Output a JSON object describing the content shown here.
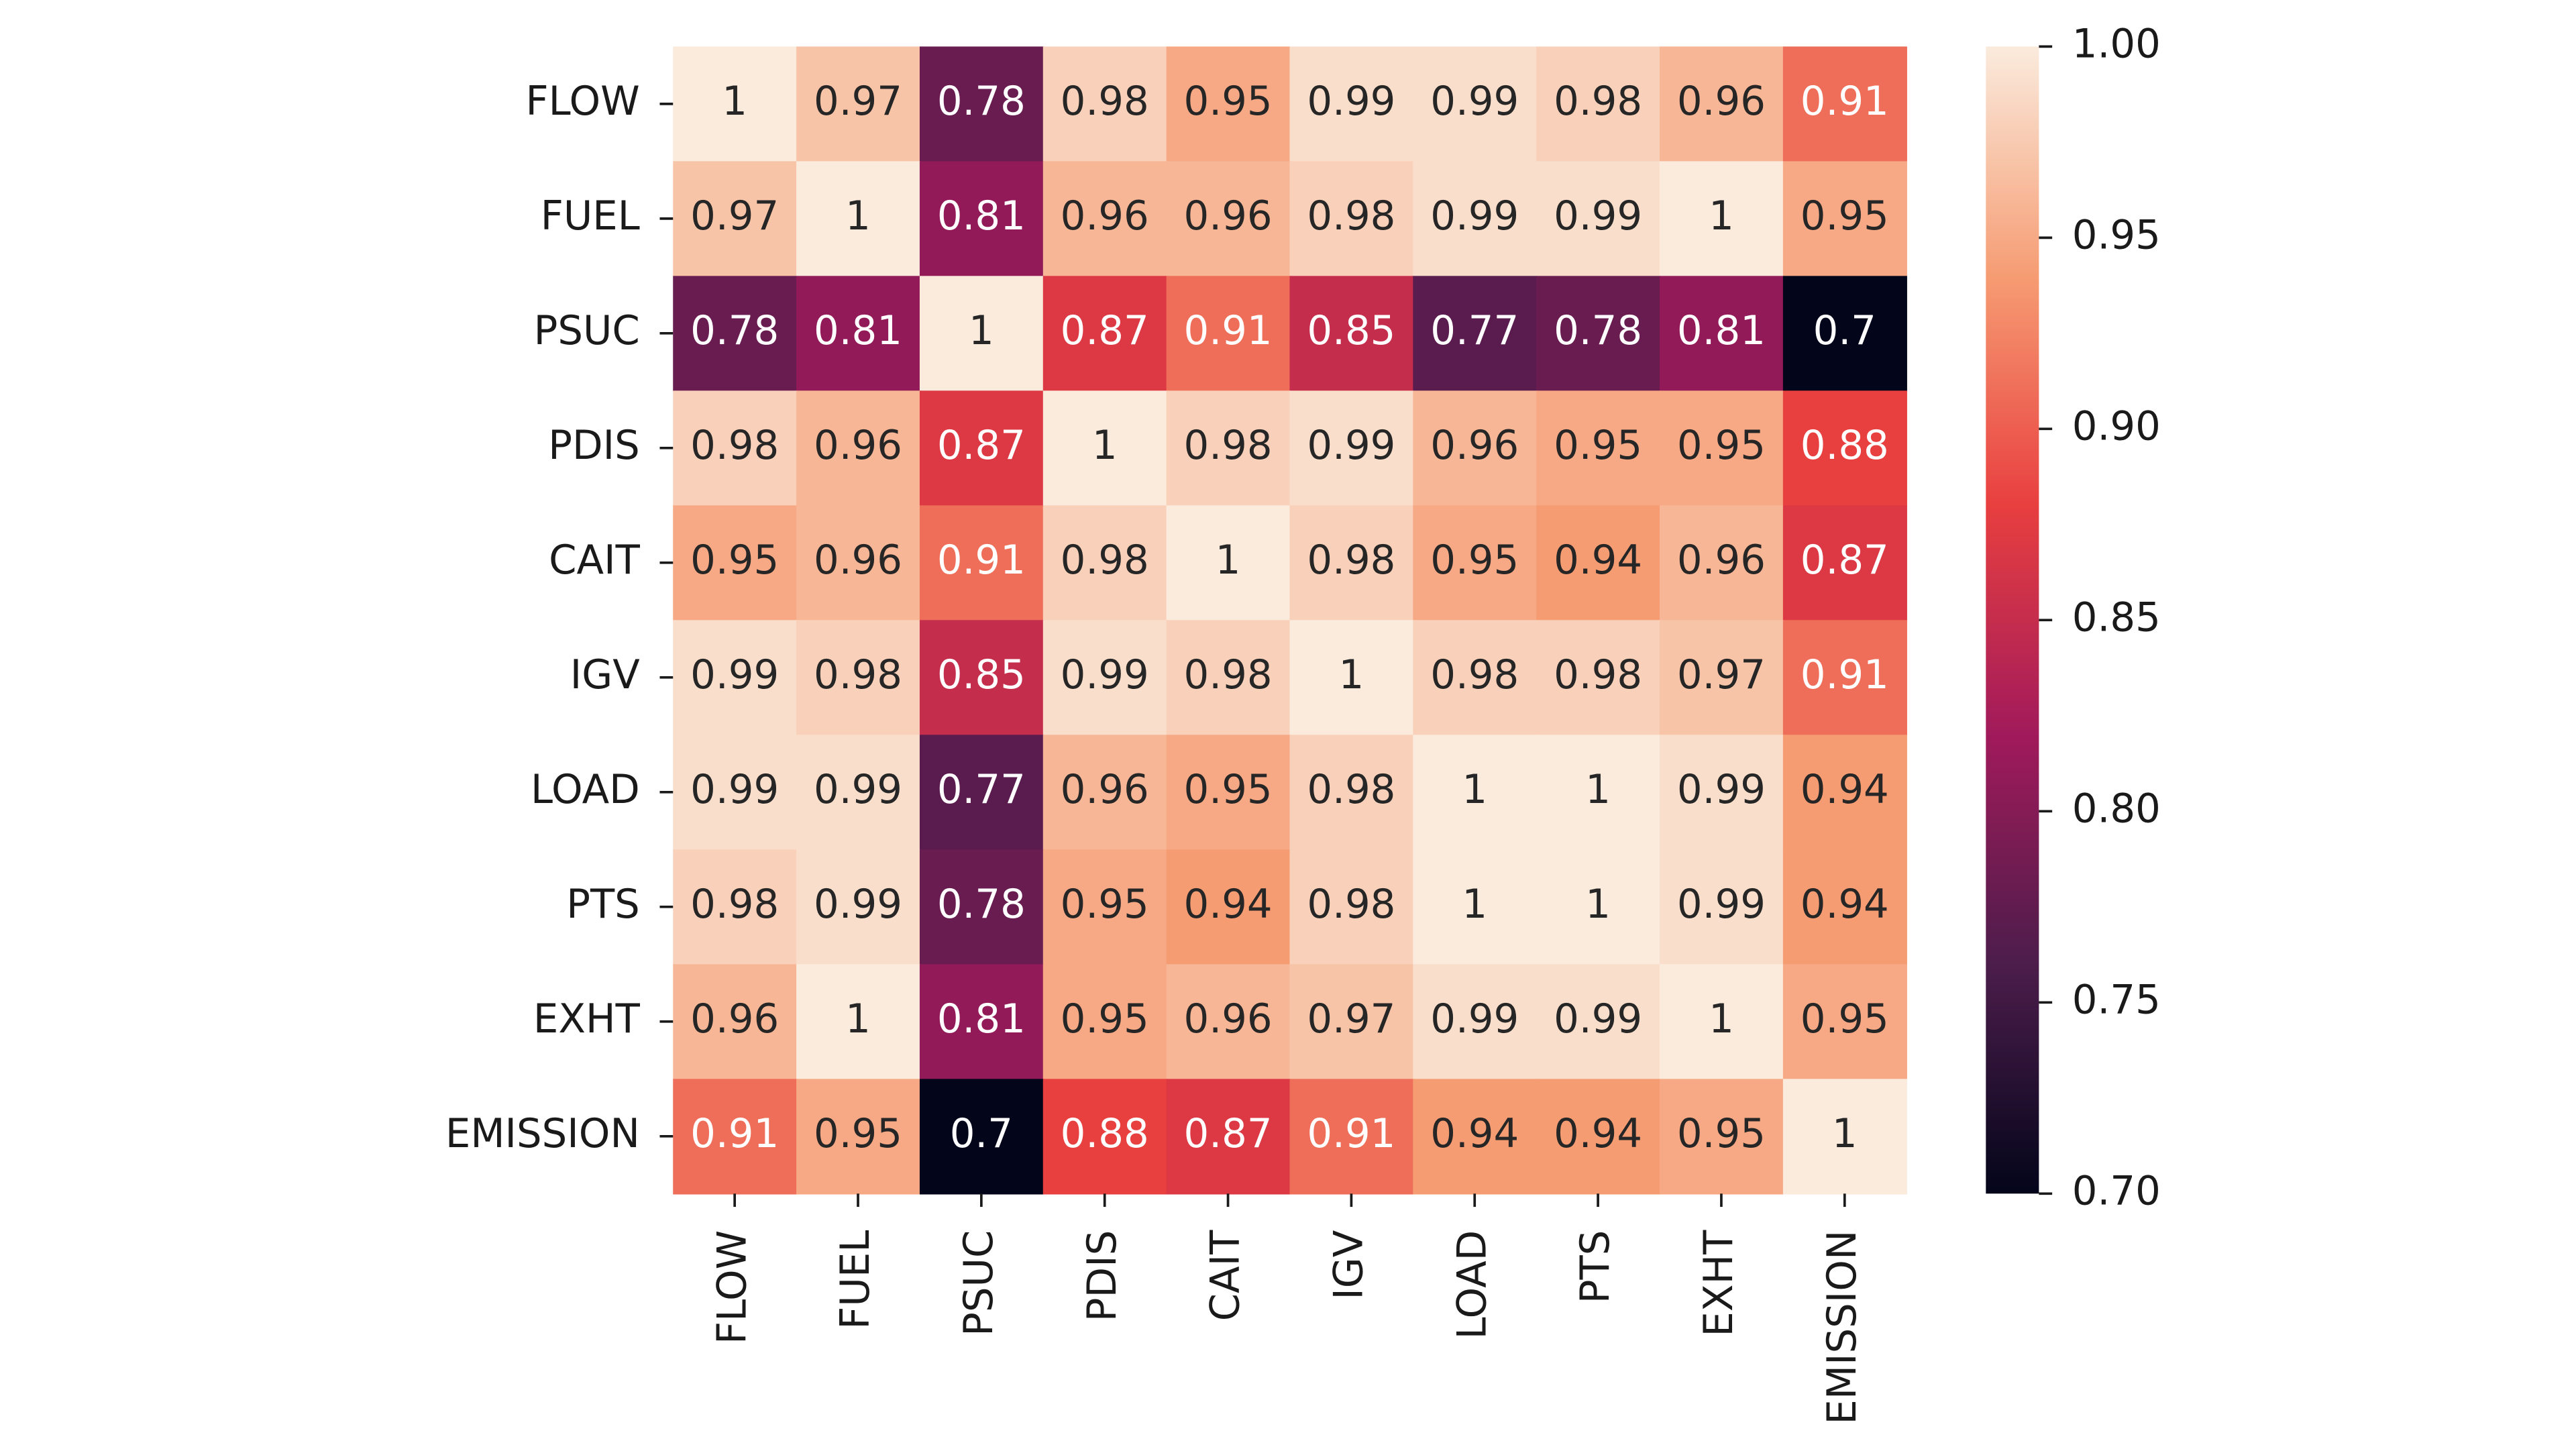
{
  "chart_data": {
    "type": "heatmap",
    "cmap": "rocket",
    "categories": [
      "FLOW",
      "FUEL",
      "PSUC",
      "PDIS",
      "CAIT",
      "IGV",
      "LOAD",
      "PTS",
      "EXHT",
      "EMISSION"
    ],
    "values": [
      [
        1,
        0.97,
        0.78,
        0.98,
        0.95,
        0.99,
        0.99,
        0.98,
        0.96,
        0.91
      ],
      [
        0.97,
        1,
        0.81,
        0.96,
        0.96,
        0.98,
        0.99,
        0.99,
        1,
        0.95
      ],
      [
        0.78,
        0.81,
        1,
        0.87,
        0.91,
        0.85,
        0.77,
        0.78,
        0.81,
        0.7
      ],
      [
        0.98,
        0.96,
        0.87,
        1,
        0.98,
        0.99,
        0.96,
        0.95,
        0.95,
        0.88
      ],
      [
        0.95,
        0.96,
        0.91,
        0.98,
        1,
        0.98,
        0.95,
        0.94,
        0.96,
        0.87
      ],
      [
        0.99,
        0.98,
        0.85,
        0.99,
        0.98,
        1,
        0.98,
        0.98,
        0.97,
        0.91
      ],
      [
        0.99,
        0.99,
        0.77,
        0.96,
        0.95,
        0.98,
        1,
        1,
        0.99,
        0.94
      ],
      [
        0.98,
        0.99,
        0.78,
        0.95,
        0.94,
        0.98,
        1,
        1,
        0.99,
        0.94
      ],
      [
        0.96,
        1,
        0.81,
        0.95,
        0.96,
        0.97,
        0.99,
        0.99,
        1,
        0.95
      ],
      [
        0.91,
        0.95,
        0.7,
        0.88,
        0.87,
        0.91,
        0.94,
        0.94,
        0.95,
        1
      ]
    ],
    "clim": [
      0.7,
      1.0
    ],
    "cticks": [
      {
        "value": 0.7,
        "label": "0.70"
      },
      0.75,
      {
        "value": 0.8,
        "label": "0.80"
      },
      0.85,
      {
        "value": 0.9,
        "label": "0.90"
      },
      0.95,
      {
        "value": 1.0,
        "label": "1.00"
      }
    ]
  }
}
